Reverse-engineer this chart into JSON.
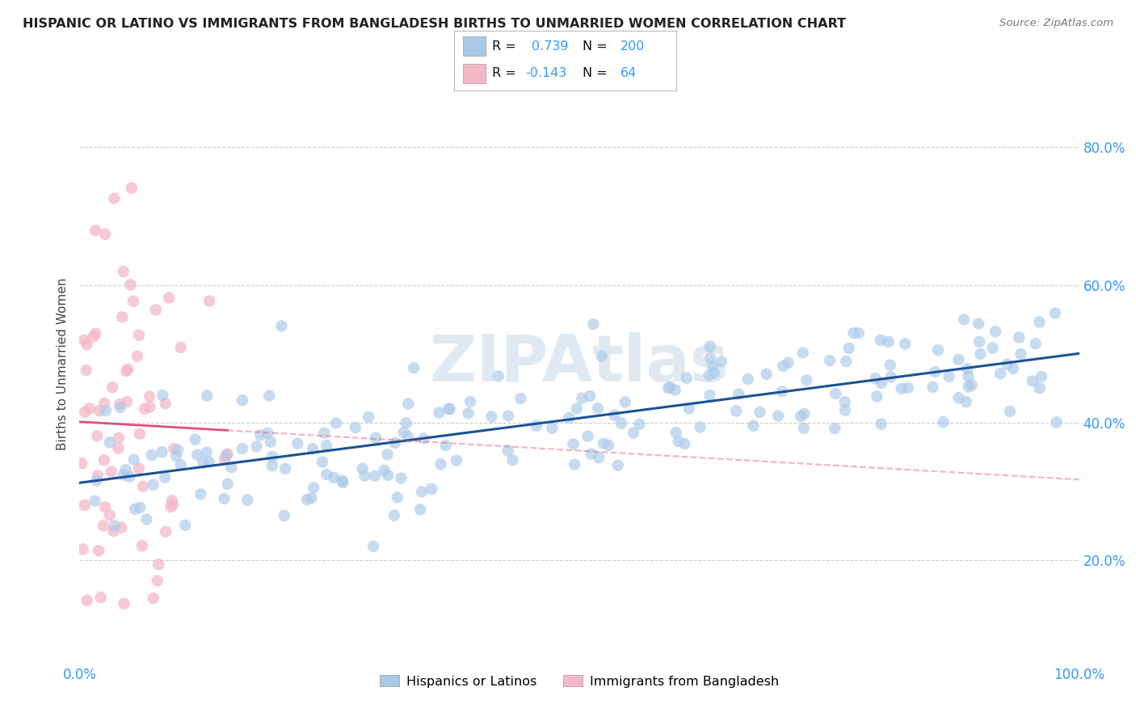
{
  "title": "HISPANIC OR LATINO VS IMMIGRANTS FROM BANGLADESH BIRTHS TO UNMARRIED WOMEN CORRELATION CHART",
  "source": "Source: ZipAtlas.com",
  "ylabel": "Births to Unmarried Women",
  "y_ticks": [
    "20.0%",
    "40.0%",
    "60.0%",
    "80.0%"
  ],
  "y_tick_vals": [
    0.2,
    0.4,
    0.6,
    0.8
  ],
  "watermark": "ZIPAtlas",
  "r1": 0.739,
  "n1": 200,
  "r2": -0.143,
  "n2": 64,
  "blue_color": "#aac9e8",
  "pink_color": "#f4b8c8",
  "blue_line_color": "#1a5296",
  "pink_line_color": "#e05080",
  "title_color": "#222222",
  "tick_color": "#3399ff",
  "grid_color": "#cccccc",
  "background": "#ffffff",
  "seed": 42,
  "xlim": [
    0.0,
    1.0
  ],
  "ylim": [
    0.05,
    0.92
  ]
}
